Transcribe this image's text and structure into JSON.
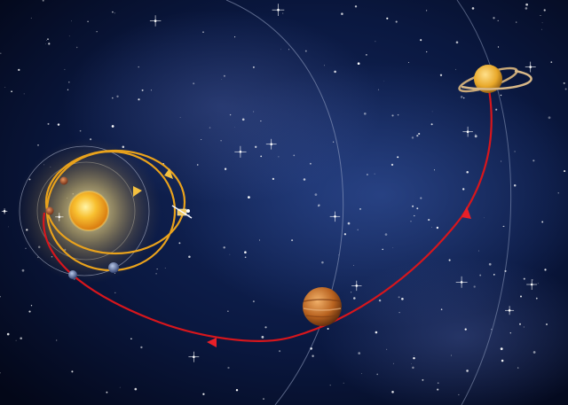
{
  "scene": {
    "subject": "trajectory-diagram-inner-solar-system-to-saturn",
    "colors": {
      "space_deep": "#040a22",
      "space_mid": "#0c1d4f",
      "nebula": "#1e3a80",
      "sun_core": "#fff4a6",
      "sun_edge": "#e08a12",
      "transfer_orbit": "#e9a21c",
      "flight_path": "#d7161c",
      "outer_orbit": "#9aa8c8",
      "jupiter": "#b8621f",
      "saturn": "#e8a82a"
    },
    "icons": [
      "sun-icon",
      "planet-icon",
      "spacecraft-icon",
      "direction-arrow-icon",
      "star-icon"
    ]
  }
}
